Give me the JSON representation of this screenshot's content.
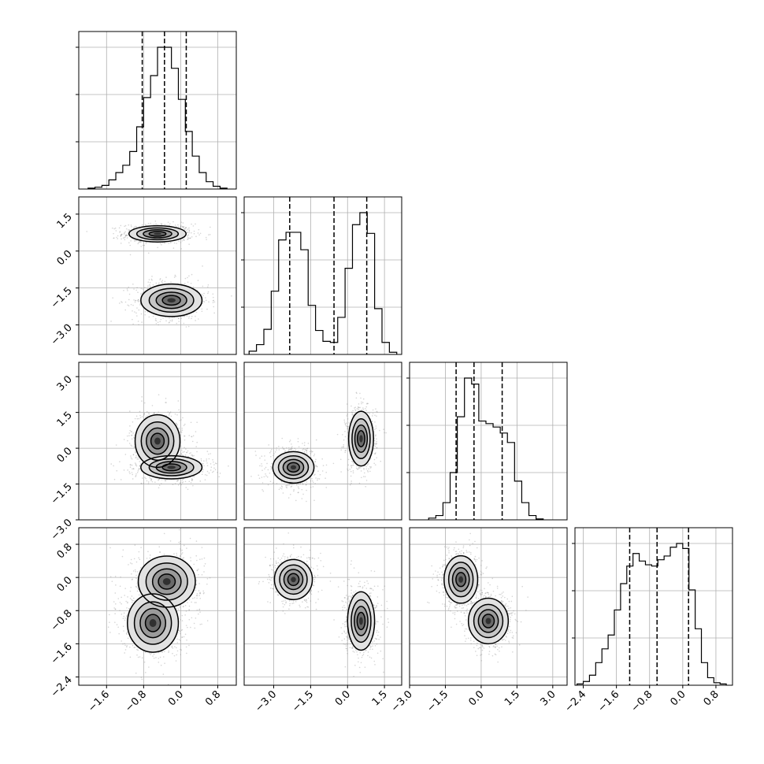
{
  "chart_data": {
    "type": "corner",
    "grid": true,
    "parameters": 4,
    "axes": [
      {
        "range": [
          -2.2,
          1.2
        ],
        "ticks": [
          -1.6,
          -0.8,
          0.0,
          0.8
        ],
        "tick_labels": [
          "−1.6",
          "−0.8",
          "0.0",
          "0.8"
        ]
      },
      {
        "range": [
          -4.2,
          2.2
        ],
        "ticks": [
          -3.0,
          -1.5,
          0.0,
          1.5
        ],
        "tick_labels": [
          "−3.0",
          "−1.5",
          "0.0",
          "1.5"
        ]
      },
      {
        "range": [
          -3.0,
          3.6
        ],
        "ticks": [
          -3.0,
          -1.5,
          0.0,
          1.5,
          3.0
        ],
        "tick_labels": [
          "−3.0",
          "−1.5",
          "0.0",
          "1.5",
          "3.0"
        ]
      },
      {
        "range": [
          -2.6,
          1.2
        ],
        "ticks": [
          -2.4,
          -1.6,
          -0.8,
          0.0,
          0.8
        ],
        "tick_labels": [
          "−2.4",
          "−1.6",
          "−0.8",
          "0.0",
          "0.8"
        ]
      }
    ],
    "histograms": [
      {
        "param": 0,
        "bin_edges": [
          -2.0,
          -1.85,
          -1.7,
          -1.55,
          -1.4,
          -1.25,
          -1.1,
          -0.95,
          -0.8,
          -0.65,
          -0.5,
          -0.35,
          -0.2,
          -0.05,
          0.1,
          0.25,
          0.4,
          0.55,
          0.7,
          0.85,
          1.0
        ],
        "counts": [
          1,
          2,
          4,
          10,
          18,
          26,
          41,
          68,
          100,
          124,
          155,
          155,
          132,
          98,
          63,
          36,
          18,
          8,
          3,
          1
        ],
        "quantiles": [
          -0.83,
          -0.35,
          0.12
        ]
      },
      {
        "param": 1,
        "bin_edges": [
          -4.0,
          -3.7,
          -3.4,
          -3.1,
          -2.8,
          -2.5,
          -2.2,
          -1.9,
          -1.6,
          -1.3,
          -1.0,
          -0.7,
          -0.4,
          -0.1,
          0.2,
          0.5,
          0.8,
          1.1,
          1.4,
          1.7,
          2.0
        ],
        "counts": [
          3,
          9,
          23,
          58,
          105,
          112,
          112,
          96,
          45,
          22,
          12,
          11,
          34,
          79,
          119,
          130,
          111,
          42,
          11,
          2
        ],
        "quantiles": [
          -2.35,
          -0.55,
          0.78
        ]
      },
      {
        "param": 2,
        "bin_edges": [
          -2.2,
          -1.9,
          -1.6,
          -1.3,
          -1.0,
          -0.7,
          -0.4,
          -0.1,
          0.2,
          0.5,
          0.8,
          1.1,
          1.4,
          1.7,
          2.0,
          2.3,
          2.6
        ],
        "counts": [
          2,
          5,
          20,
          55,
          120,
          165,
          158,
          115,
          112,
          108,
          101,
          90,
          45,
          20,
          5,
          1
        ],
        "quantiles": [
          -1.05,
          -0.3,
          0.88
        ]
      },
      {
        "param": 3,
        "bin_edges": [
          -2.55,
          -2.4,
          -2.25,
          -2.1,
          -1.95,
          -1.8,
          -1.65,
          -1.5,
          -1.35,
          -1.2,
          -1.05,
          -0.9,
          -0.75,
          -0.6,
          -0.45,
          -0.3,
          -0.15,
          0.0,
          0.15,
          0.3,
          0.45,
          0.6,
          0.75,
          0.9,
          1.05
        ],
        "counts": [
          1,
          3,
          8,
          18,
          29,
          40,
          60,
          81,
          95,
          105,
          99,
          96,
          95,
          100,
          103,
          110,
          113,
          109,
          76,
          45,
          18,
          6,
          2,
          1
        ],
        "quantiles": [
          -1.28,
          -0.62,
          0.14
        ]
      }
    ],
    "pairs": [
      {
        "x_param": 0,
        "y_param": 1,
        "modes": [
          {
            "mean": [
              -0.5,
              0.7
            ],
            "sd": [
              0.28,
              0.15
            ],
            "weight": 0.5
          },
          {
            "mean": [
              -0.2,
              -2.0
            ],
            "sd": [
              0.3,
              0.3
            ],
            "weight": 0.5
          }
        ]
      },
      {
        "x_param": 0,
        "y_param": 2,
        "modes": [
          {
            "mean": [
              -0.5,
              0.3
            ],
            "sd": [
              0.22,
              0.5
            ],
            "weight": 0.5
          },
          {
            "mean": [
              -0.2,
              -0.8
            ],
            "sd": [
              0.3,
              0.22
            ],
            "weight": 0.5
          }
        ]
      },
      {
        "x_param": 1,
        "y_param": 2,
        "modes": [
          {
            "mean": [
              -2.2,
              -0.8
            ],
            "sd": [
              0.38,
              0.3
            ],
            "weight": 0.5
          },
          {
            "mean": [
              0.55,
              0.4
            ],
            "sd": [
              0.23,
              0.52
            ],
            "weight": 0.5
          }
        ]
      },
      {
        "x_param": 0,
        "y_param": 3,
        "modes": [
          {
            "mean": [
              -0.3,
              -0.1
            ],
            "sd": [
              0.28,
              0.28
            ],
            "weight": 0.5
          },
          {
            "mean": [
              -0.6,
              -1.1
            ],
            "sd": [
              0.25,
              0.32
            ],
            "weight": 0.5
          }
        ]
      },
      {
        "x_param": 1,
        "y_param": 3,
        "modes": [
          {
            "mean": [
              -2.2,
              -0.05
            ],
            "sd": [
              0.35,
              0.22
            ],
            "weight": 0.5
          },
          {
            "mean": [
              0.55,
              -1.05
            ],
            "sd": [
              0.25,
              0.32
            ],
            "weight": 0.5
          }
        ]
      },
      {
        "x_param": 2,
        "y_param": 3,
        "modes": [
          {
            "mean": [
              -0.85,
              -0.05
            ],
            "sd": [
              0.32,
              0.26
            ],
            "weight": 0.5
          },
          {
            "mean": [
              0.3,
              -1.05
            ],
            "sd": [
              0.38,
              0.25
            ],
            "weight": 0.5
          }
        ]
      }
    ]
  }
}
